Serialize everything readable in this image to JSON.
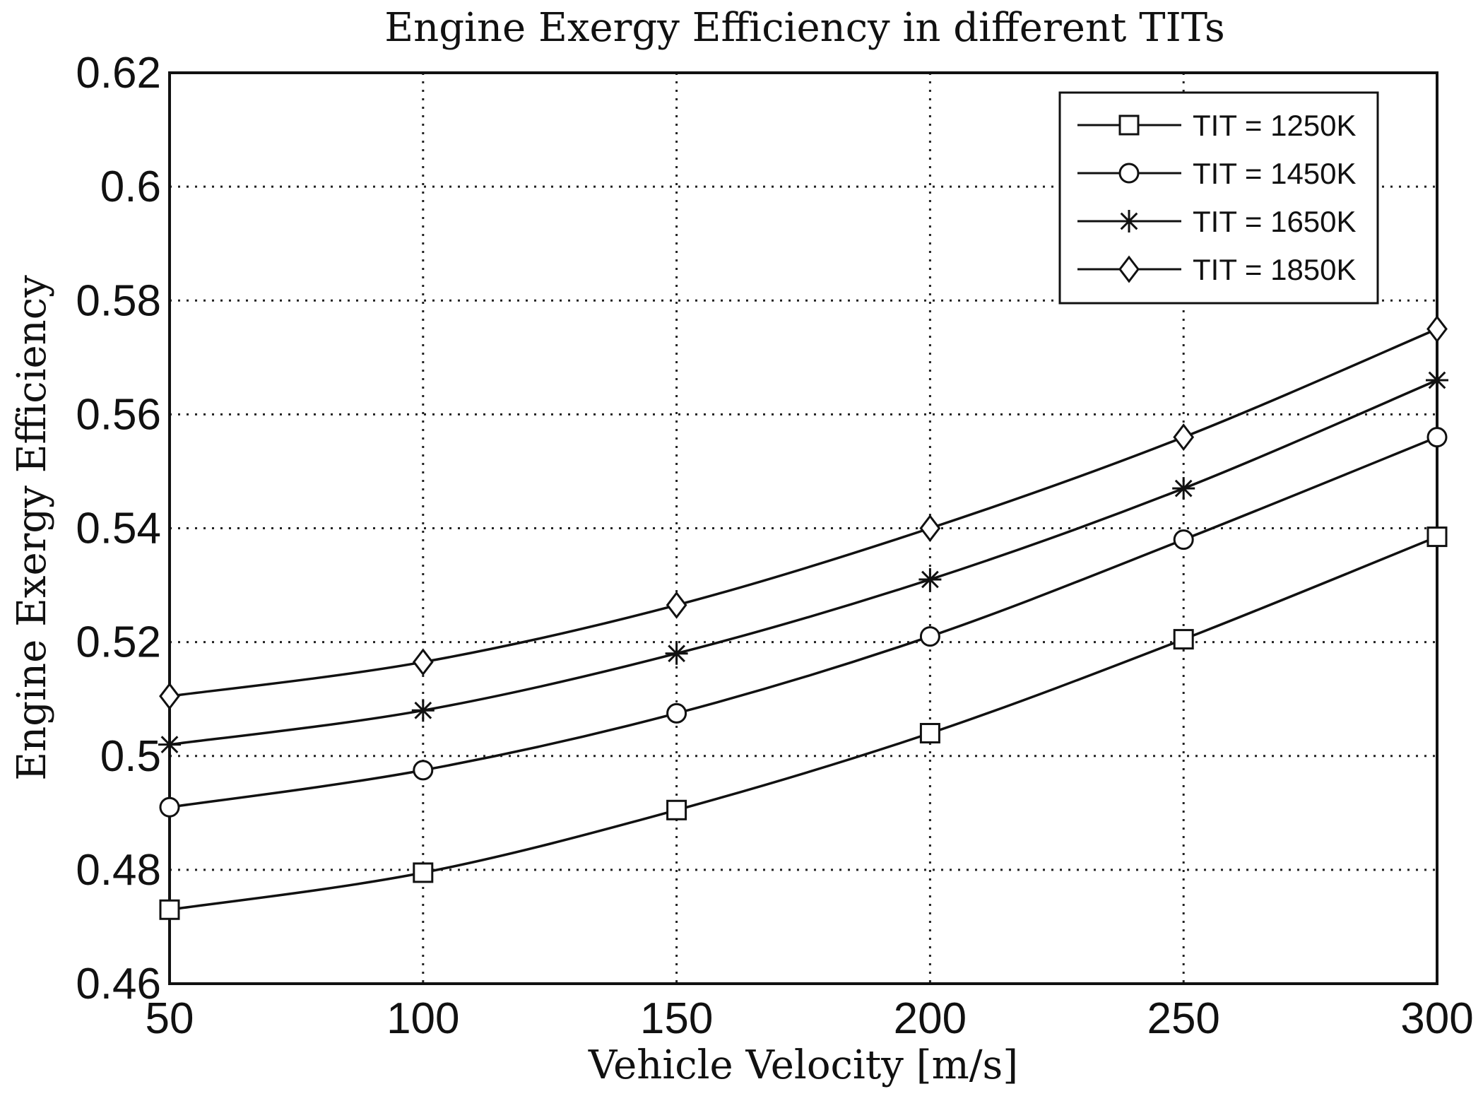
{
  "chart_data": {
    "type": "line",
    "title": "Engine Exergy Efficiency in different TITs",
    "xlabel": "Vehicle Velocity [m/s]",
    "ylabel": "Engine Exergy Efficiency",
    "xlim": [
      50,
      300
    ],
    "ylim": [
      0.46,
      0.62
    ],
    "xticks": [
      50,
      100,
      150,
      200,
      250,
      300
    ],
    "xtick_labels": [
      "50",
      "100",
      "150",
      "200",
      "250",
      "300"
    ],
    "yticks": [
      0.46,
      0.48,
      0.5,
      0.52,
      0.54,
      0.56,
      0.58,
      0.6,
      0.62
    ],
    "ytick_labels": [
      "0.46",
      "0.48",
      "0.5",
      "0.52",
      "0.54",
      "0.56",
      "0.58",
      "0.6",
      "0.62"
    ],
    "grid": true,
    "legend_position": "top-right",
    "x": [
      50,
      100,
      150,
      200,
      250,
      300
    ],
    "series": [
      {
        "name": "TIT = 1250K",
        "marker": "square",
        "values": [
          0.473,
          0.4795,
          0.4905,
          0.504,
          0.5205,
          0.5385
        ]
      },
      {
        "name": "TIT = 1450K",
        "marker": "circle",
        "values": [
          0.491,
          0.4975,
          0.5075,
          0.521,
          0.538,
          0.556
        ]
      },
      {
        "name": "TIT = 1650K",
        "marker": "star",
        "values": [
          0.502,
          0.508,
          0.518,
          0.531,
          0.547,
          0.566
        ]
      },
      {
        "name": "TIT = 1850K",
        "marker": "diamond",
        "values": [
          0.5105,
          0.5165,
          0.5265,
          0.54,
          0.556,
          0.575
        ]
      }
    ]
  }
}
